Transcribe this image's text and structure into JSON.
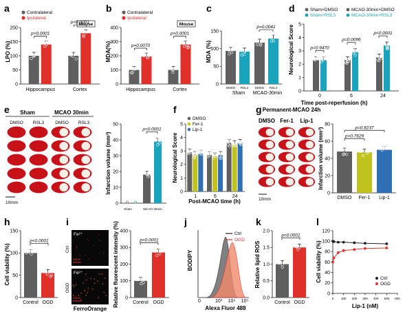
{
  "colors": {
    "gray": "#5f5f5f",
    "red": "#e0302a",
    "teal": "#1aa3bd",
    "olive": "#c0c21e",
    "blue": "#2f6fb3",
    "black": "#222222"
  },
  "panels": {
    "a": {
      "letter": "a",
      "ylabel": "LPO (%)",
      "yticks": [
        "0",
        "50",
        "100",
        "150",
        "200"
      ],
      "legend": [
        "Contralateral",
        "Ipsilateral"
      ],
      "mouse": "Mouse",
      "groups": [
        "Hippocampus",
        "Cortex"
      ],
      "p": [
        "p<0.0001",
        "p<0.0001"
      ]
    },
    "b": {
      "letter": "b",
      "ylabel": "MDA(%)",
      "yticks": [
        "0",
        "100",
        "200",
        "300",
        "400"
      ],
      "legend": [
        "Contralateral",
        "Ipsilateral"
      ],
      "mouse": "Mouse",
      "groups": [
        "Hippocampus",
        "Cortex"
      ],
      "p": [
        "p=0.0070",
        "p<0.0001"
      ]
    },
    "c": {
      "letter": "c",
      "ylabel": "MDA (%)",
      "yticks": [
        "0",
        "50",
        "100",
        "150"
      ],
      "groups": [
        "Sham",
        "MCAO-30min"
      ],
      "bars": [
        "DMSO",
        "RSL3",
        "DMSO",
        "RSL3"
      ],
      "p": [
        "p=0.0041"
      ]
    },
    "d": {
      "letter": "d",
      "ylabel": "Neurological Score",
      "yticks": [
        "0",
        "1",
        "2",
        "3",
        "4",
        "5"
      ],
      "legend": [
        "Sham+DMSO",
        "MCAO-30min+DMSO",
        "Sham+RSL3",
        "MCAO-30min+RSL3"
      ],
      "xticks": [
        "0",
        "6",
        "24"
      ],
      "xlabel": "Time post-reperfusion (h)",
      "p": [
        "p=0.9470",
        "p=0.0096",
        "p<0.0001"
      ]
    },
    "e": {
      "letter": "e",
      "sham": "Sham",
      "mcao": "MCAO 30min",
      "cols": [
        "DMSO",
        "RSL3",
        "DMSO",
        "RSL3"
      ],
      "scale": "10mm",
      "ylabel": "Infarction volume (mm³)",
      "yticks": [
        "0",
        "10",
        "20",
        "30",
        "40",
        "50"
      ],
      "groups": [
        "Sham",
        "MCAO-30min"
      ],
      "bars": [
        "DMSO",
        "RSL3",
        "DMSO",
        "RSL3"
      ],
      "p": [
        "p<0.0001"
      ]
    },
    "f": {
      "letter": "f",
      "ylabel": "Neurological Score",
      "yticks": [
        "0",
        "1",
        "2",
        "3",
        "4",
        "5"
      ],
      "legend": [
        "DMSO",
        "Fer-1",
        "Lip-1"
      ],
      "xticks": [
        "1",
        "6",
        "24"
      ],
      "xlabel": "Post-MCAO time (h)"
    },
    "g": {
      "letter": "g",
      "title": "Permanent-MCAO 24h",
      "cols": [
        "DMSO",
        "Fer-1",
        "Lip-1"
      ],
      "scale": "10mm",
      "ylabel": "Infarction volume (mm³)",
      "yticks": [
        "0",
        "20",
        "40",
        "60",
        "80"
      ],
      "groups": [
        "DMSO",
        "Fer-1",
        "Lip-1"
      ],
      "p": [
        "p=0.7629",
        "p=0.8237"
      ]
    },
    "h": {
      "letter": "h",
      "ylabel": "Cell viability (%)",
      "yticks": [
        "0",
        "50",
        "100",
        "150"
      ],
      "groups": [
        "Control",
        "OGD"
      ],
      "p": [
        "p<0.0001"
      ]
    },
    "i": {
      "letter": "i",
      "fe1": "Fe²⁺",
      "fe2": "Fe²⁺",
      "ctrl": "Ctrl",
      "ogd": "OGD",
      "scale1": "50μm",
      "scale2": "50μm",
      "probe": "FerroOrange",
      "ylabel": "Relative fluorescent intensity (%)",
      "yticks": [
        "0",
        "100",
        "200",
        "300",
        "400"
      ],
      "groups": [
        "Control",
        "OGD"
      ],
      "p": [
        "p<0.0001"
      ]
    },
    "j": {
      "letter": "j",
      "ylabel": "BODIPY",
      "xlabel": "Alexa Fluor 488",
      "legend": [
        "Ctrl",
        "OGD"
      ],
      "xticks": [
        "0",
        "10³",
        "10⁴",
        "10⁵"
      ]
    },
    "k": {
      "letter": "k",
      "ylabel": "Relative lipid ROS",
      "yticks": [
        "0.0",
        "0.5",
        "1.0",
        "1.5",
        "2.0"
      ],
      "groups": [
        "Control",
        "OGD"
      ],
      "p": [
        "p<0.0001"
      ]
    },
    "l": {
      "letter": "l",
      "ylabel": "Cell viability (%)",
      "yticks": [
        "0",
        "20",
        "40",
        "60",
        "80",
        "100",
        "120"
      ],
      "xticks": [
        "0",
        "100",
        "200",
        "300",
        "400",
        "500",
        "600"
      ],
      "xlabel": "Lip-1 (nM)",
      "legend": [
        "Ctrl",
        "OGD"
      ]
    }
  },
  "chart_data": [
    {
      "id": "a",
      "type": "bar",
      "categories": [
        "Hippocampus",
        "Cortex"
      ],
      "series": [
        {
          "name": "Contralateral",
          "values": [
            100,
            100
          ]
        },
        {
          "name": "Ipsilateral",
          "values": [
            140,
            180
          ]
        }
      ],
      "ylabel": "LPO (%)",
      "ylim": [
        0,
        200
      ]
    },
    {
      "id": "b",
      "type": "bar",
      "categories": [
        "Hippocampus",
        "Cortex"
      ],
      "series": [
        {
          "name": "Contralateral",
          "values": [
            100,
            100
          ]
        },
        {
          "name": "Ipsilateral",
          "values": [
            195,
            280
          ]
        }
      ],
      "ylabel": "MDA(%)",
      "ylim": [
        0,
        400
      ]
    },
    {
      "id": "c",
      "type": "bar",
      "categories": [
        "Sham DMSO",
        "Sham RSL3",
        "MCAO-30min DMSO",
        "MCAO-30min RSL3"
      ],
      "values": [
        100,
        98,
        125,
        137
      ],
      "ylabel": "MDA (%)",
      "ylim": [
        0,
        160
      ]
    },
    {
      "id": "d",
      "type": "bar",
      "categories": [
        "0",
        "6",
        "24"
      ],
      "series": [
        {
          "name": "Sham+DMSO",
          "values": [
            0,
            0,
            0
          ]
        },
        {
          "name": "Sham+RSL3",
          "values": [
            0,
            0,
            0
          ]
        },
        {
          "name": "MCAO-30min+DMSO",
          "values": [
            2.3,
            2.3,
            2.5
          ]
        },
        {
          "name": "MCAO-30min+RSL3",
          "values": [
            2.3,
            2.9,
            3.4
          ]
        }
      ],
      "xlabel": "Time post-reperfusion (h)",
      "ylabel": "Neurological Score",
      "ylim": [
        0,
        5
      ]
    },
    {
      "id": "e",
      "type": "bar",
      "categories": [
        "Sham DMSO",
        "Sham RSL3",
        "MCAO-30min DMSO",
        "MCAO-30min RSL3"
      ],
      "values": [
        0,
        0,
        18,
        39
      ],
      "ylabel": "Infarction volume (mm³)",
      "ylim": [
        0,
        50
      ]
    },
    {
      "id": "f",
      "type": "bar",
      "categories": [
        "1",
        "6",
        "24"
      ],
      "series": [
        {
          "name": "DMSO",
          "values": [
            2.9,
            2.7,
            3.6
          ]
        },
        {
          "name": "Fer-1",
          "values": [
            2.7,
            2.6,
            3.5
          ]
        },
        {
          "name": "Lip-1",
          "values": [
            2.8,
            2.7,
            3.6
          ]
        }
      ],
      "xlabel": "Post-MCAO time (h)",
      "ylabel": "Neurological Score",
      "ylim": [
        0,
        5
      ]
    },
    {
      "id": "g",
      "type": "bar",
      "categories": [
        "DMSO",
        "Fer-1",
        "Lip-1"
      ],
      "values": [
        48,
        47,
        50
      ],
      "ylabel": "Infarction volume (mm³)",
      "ylim": [
        0,
        80
      ]
    },
    {
      "id": "h",
      "type": "bar",
      "categories": [
        "Control",
        "OGD"
      ],
      "values": [
        100,
        55
      ],
      "ylabel": "Cell viability (%)",
      "ylim": [
        0,
        150
      ]
    },
    {
      "id": "i",
      "type": "bar",
      "categories": [
        "Control",
        "OGD"
      ],
      "values": [
        100,
        270
      ],
      "ylabel": "Relative fluorescent intensity (%)",
      "ylim": [
        0,
        400
      ]
    },
    {
      "id": "k",
      "type": "bar",
      "categories": [
        "Control",
        "OGD"
      ],
      "values": [
        1.0,
        1.5
      ],
      "ylabel": "Relative lipid ROS",
      "ylim": [
        0,
        2
      ]
    },
    {
      "id": "l",
      "type": "line",
      "x": [
        0,
        10,
        50,
        100,
        200,
        300,
        500
      ],
      "series": [
        {
          "name": "Ctrl",
          "values": [
            100,
            99,
            98,
            98,
            97,
            96,
            95
          ]
        },
        {
          "name": "OGD",
          "values": [
            60,
            68,
            78,
            82,
            84,
            86,
            87
          ]
        }
      ],
      "xlabel": "Lip-1 (nM)",
      "ylabel": "Cell viability (%)",
      "xlim": [
        0,
        600
      ],
      "ylim": [
        0,
        120
      ]
    }
  ]
}
